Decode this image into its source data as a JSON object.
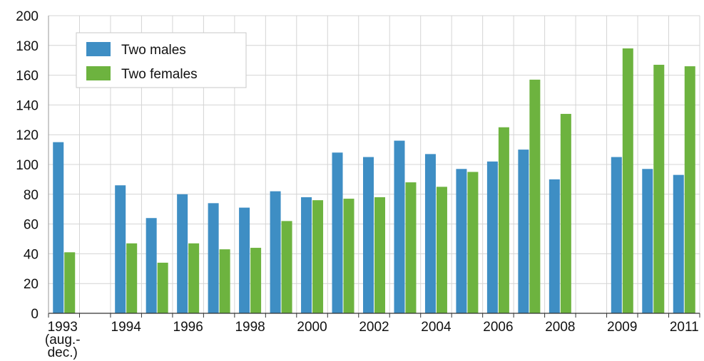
{
  "chart_data": {
    "type": "bar",
    "x_slots": [
      "1993",
      "gap-1",
      "1994",
      "1995",
      "1996",
      "1997",
      "1998",
      "1999",
      "2000",
      "2001",
      "2002",
      "2003",
      "2004",
      "2005",
      "2006",
      "2007",
      "2008",
      "gap-2",
      "2009",
      "2010",
      "2011"
    ],
    "x_tick_labels": [
      {
        "slot": 0,
        "lines": [
          "1993",
          "(aug.-",
          "dec.)"
        ]
      },
      {
        "slot": 2,
        "lines": [
          "1994"
        ]
      },
      {
        "slot": 4,
        "lines": [
          "1996"
        ]
      },
      {
        "slot": 6,
        "lines": [
          "1998"
        ]
      },
      {
        "slot": 8,
        "lines": [
          "2000"
        ]
      },
      {
        "slot": 10,
        "lines": [
          "2002"
        ]
      },
      {
        "slot": 12,
        "lines": [
          "2004"
        ]
      },
      {
        "slot": 14,
        "lines": [
          "2006"
        ]
      },
      {
        "slot": 16,
        "lines": [
          "2008"
        ]
      },
      {
        "slot": 18,
        "lines": [
          "2009"
        ]
      },
      {
        "slot": 20,
        "lines": [
          "2011"
        ]
      }
    ],
    "series": [
      {
        "name": "Two males",
        "color": "#3e8ec4",
        "values": [
          115,
          null,
          86,
          64,
          80,
          74,
          71,
          82,
          78,
          108,
          105,
          116,
          107,
          97,
          102,
          110,
          90,
          null,
          105,
          97,
          93
        ]
      },
      {
        "name": "Two females",
        "color": "#6db33f",
        "values": [
          41,
          null,
          47,
          34,
          47,
          43,
          44,
          62,
          76,
          77,
          78,
          88,
          85,
          95,
          125,
          157,
          134,
          null,
          178,
          167,
          166
        ]
      }
    ],
    "ylim": [
      0,
      200
    ],
    "yticks": [
      0,
      20,
      40,
      60,
      80,
      100,
      120,
      140,
      160,
      180,
      200
    ],
    "grid": true,
    "legend_position": "top-left",
    "title": "",
    "xlabel": "",
    "ylabel": ""
  }
}
